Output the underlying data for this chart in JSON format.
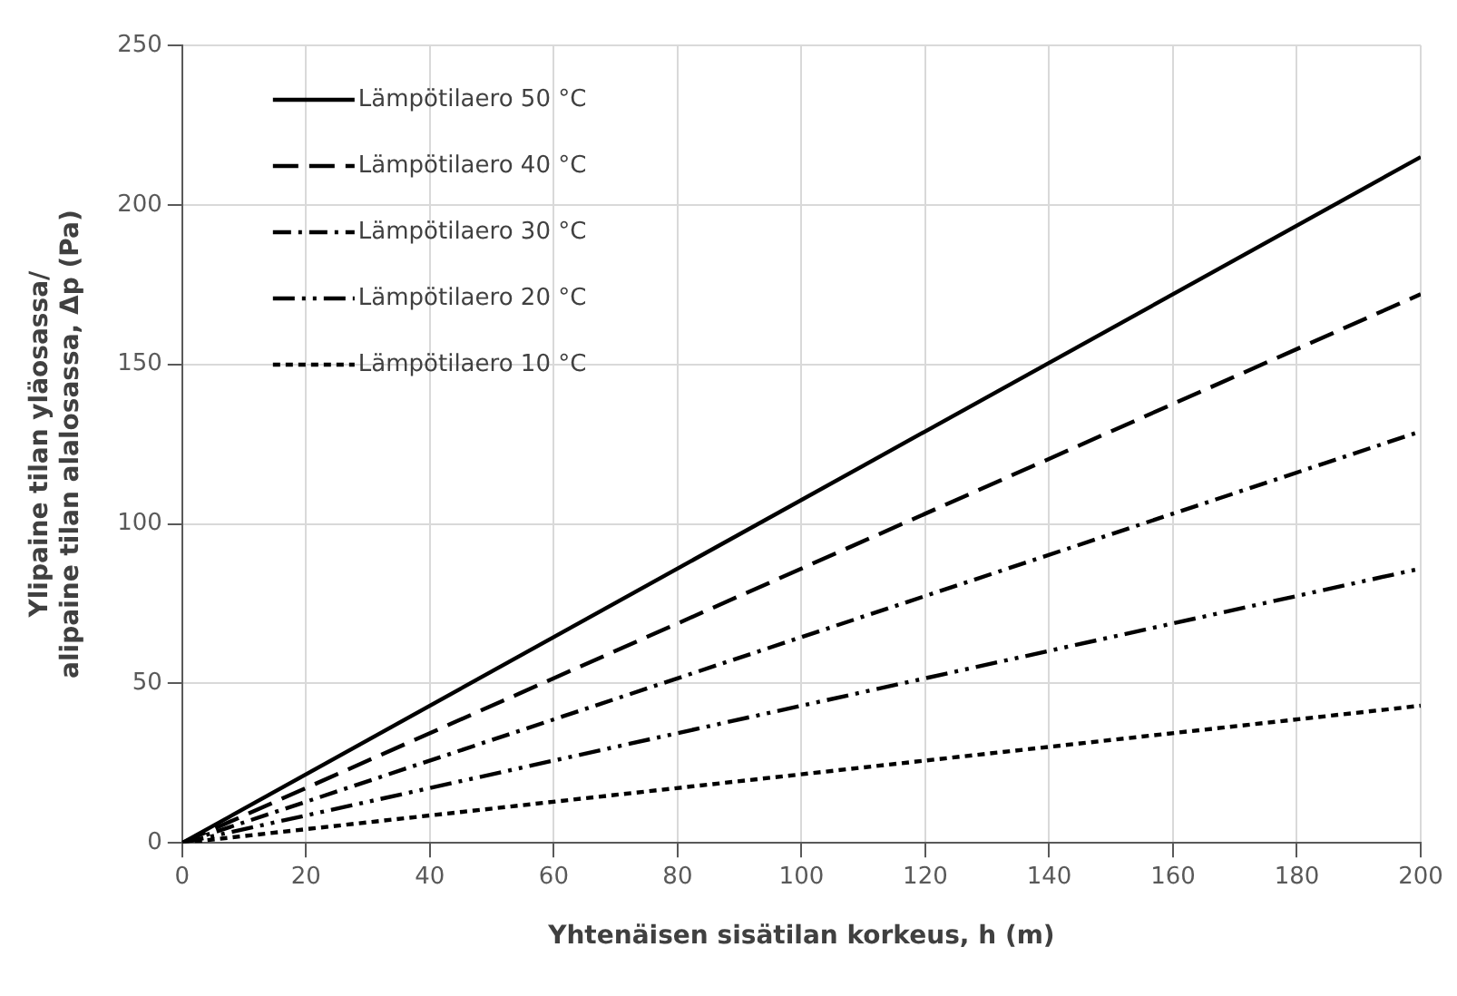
{
  "chart_data": {
    "type": "line",
    "xlabel": "Yhtenäisen sisätilan korkeus, h (m)",
    "ylabel": "Ylipaine tilan yläosassa/\nalipaine tilan alalosassa, Δp (Pa)",
    "x": [
      0,
      200
    ],
    "series": [
      {
        "name": "Lämpötilaero 50 °C",
        "color": "#000000",
        "values": [
          0,
          215
        ],
        "line_style": "solid"
      },
      {
        "name": "Lämpötilaero 40 °C",
        "color": "#000000",
        "values": [
          0,
          172
        ],
        "line_style": "dashed"
      },
      {
        "name": "Lämpötilaero 30 °C",
        "color": "#000000",
        "values": [
          0,
          129
        ],
        "line_style": "dashed"
      },
      {
        "name": "Lämpötilaero 20 °C",
        "color": "#000000",
        "values": [
          0,
          86
        ],
        "line_style": "dashed"
      },
      {
        "name": "Lämpötilaero 10 °C",
        "color": "#000000",
        "values": [
          0,
          43
        ],
        "line_style": "dotted"
      }
    ],
    "xlim": [
      0,
      200
    ],
    "xticks": [
      0,
      20,
      40,
      60,
      80,
      100,
      120,
      140,
      160,
      180,
      200
    ],
    "ylim": [
      0,
      250
    ],
    "yticks": [
      0,
      50,
      100,
      150,
      200,
      250
    ],
    "grid": true,
    "legend": "top left",
    "marker": "none"
  }
}
